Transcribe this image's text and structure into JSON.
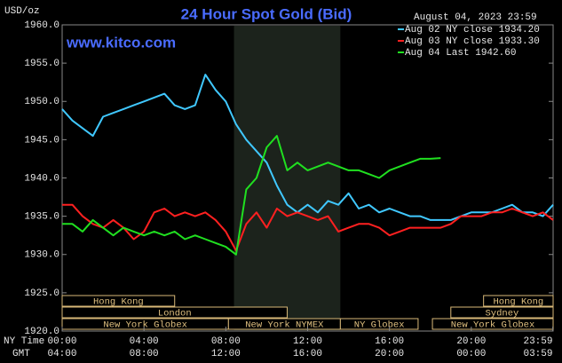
{
  "chart_data": {
    "type": "line",
    "title": "24 Hour Spot Gold (Bid)",
    "source": "www.kitco.com",
    "y_unit": "USD/oz",
    "timestamp": "August 04, 2023 23:59",
    "x_axis_labels": [
      "NY Time",
      "GMT"
    ],
    "x": [
      0,
      0.5,
      1,
      1.5,
      2,
      2.5,
      3,
      3.5,
      4,
      4.5,
      5,
      5.5,
      6,
      6.5,
      7,
      7.5,
      8,
      8.5,
      9,
      9.5,
      10,
      10.5,
      11,
      11.5,
      12,
      12.5,
      13,
      13.5,
      14,
      14.5,
      15,
      15.5,
      16,
      16.5,
      17,
      17.5,
      18,
      18.5,
      19,
      19.5,
      20,
      20.5,
      21,
      21.5,
      22,
      22.5,
      23,
      23.5,
      24
    ],
    "xlim": [
      0,
      24
    ],
    "xticks": [
      {
        "value": 0,
        "label": "00:00"
      },
      {
        "value": 4,
        "label": "04:00"
      },
      {
        "value": 8,
        "label": "08:00"
      },
      {
        "value": 12,
        "label": "12:00"
      },
      {
        "value": 16,
        "label": "16:00"
      },
      {
        "value": 20,
        "label": "20:00"
      },
      {
        "value": 23.98,
        "label": "23:59"
      }
    ],
    "gmt_ticks": [
      "04:00",
      "08:00",
      "12:00",
      "16:00",
      "20:00",
      "00:00",
      "03:59"
    ],
    "ylim": [
      1920,
      1960
    ],
    "yticks": [
      {
        "value": 1920,
        "label": "1920.0"
      },
      {
        "value": 1925,
        "label": "1925.0"
      },
      {
        "value": 1930,
        "label": "1930.0"
      },
      {
        "value": 1935,
        "label": "1935.0"
      },
      {
        "value": 1940,
        "label": "1940.0"
      },
      {
        "value": 1945,
        "label": "1945.0"
      },
      {
        "value": 1950,
        "label": "1950.0"
      },
      {
        "value": 1955,
        "label": "1955.0"
      },
      {
        "value": 1960,
        "label": "1960.0"
      }
    ],
    "highlight_x": [
      8.4,
      13.6
    ],
    "sessions": [
      {
        "name": "Hong Kong",
        "start": 0,
        "end": 5.5
      },
      {
        "name": "London",
        "start": 0,
        "end": 11
      },
      {
        "name": "New York Globex",
        "start": 0,
        "end": 8.13
      },
      {
        "name": "New York NYMEX",
        "start": 8.13,
        "end": 13.6
      },
      {
        "name": "NY Globex",
        "start": 13.6,
        "end": 17.4
      },
      {
        "name": "Hong Kong",
        "start": 20.6,
        "end": 24
      },
      {
        "name": "Sydney",
        "start": 19,
        "end": 24
      },
      {
        "name": "New York Globex",
        "start": 18.1,
        "end": 24
      }
    ],
    "series": [
      {
        "name": "Aug 02 NY close 1934.20",
        "color": "#40c8ff",
        "values": [
          1949,
          1947.5,
          1946.5,
          1945.5,
          1948,
          1948.5,
          1949,
          1949.5,
          1950,
          1950.5,
          1951,
          1949.5,
          1949,
          1949.5,
          1953.5,
          1951.5,
          1950,
          1947,
          1945,
          1943.5,
          1942,
          1939,
          1936.5,
          1935.5,
          1936.5,
          1935.5,
          1937,
          1936.5,
          1938,
          1936,
          1936.5,
          1935.5,
          1936,
          1935.5,
          1935,
          1935,
          1934.5,
          1934.5,
          1934.5,
          1935,
          1935.5,
          1935.5,
          1935.5,
          1936,
          1936.5,
          1935.5,
          1935.5,
          1935,
          1936.5
        ]
      },
      {
        "name": "Aug 03 NY close 1933.30",
        "color": "#ff2020",
        "values": [
          1936.5,
          1936.5,
          1935,
          1934,
          1933.5,
          1934.5,
          1933.5,
          1932,
          1933,
          1935.5,
          1936,
          1935,
          1935.5,
          1935,
          1935.5,
          1934.5,
          1933,
          1930.5,
          1934,
          1935.5,
          1933.5,
          1936,
          1935,
          1935.5,
          1935,
          1934.5,
          1935,
          1933,
          1933.5,
          1934,
          1934,
          1933.5,
          1932.5,
          1933,
          1933.5,
          1933.5,
          1933.5,
          1933.5,
          1934,
          1935,
          1935,
          1935,
          1935.5,
          1935.5,
          1936,
          1935.5,
          1935,
          1935.5,
          1934.5
        ]
      },
      {
        "name": "Aug 04 Last 1942.60",
        "color": "#20e020",
        "values": [
          1934,
          1934,
          1933,
          1934.5,
          1933.5,
          1932.5,
          1933.5,
          1933,
          1932.5,
          1933,
          1932.5,
          1933,
          1932,
          1932.5,
          1932,
          1931.5,
          1931,
          1930,
          1938.5,
          1940,
          1944,
          1945.5,
          1941,
          1942,
          1941,
          1941.5,
          1942,
          1941.5,
          1941,
          1941,
          1940.5,
          1940,
          1941,
          1941.5,
          1942,
          1942.5,
          1942.5,
          1942.6,
          null,
          null,
          null,
          null,
          null,
          null,
          null,
          null,
          null,
          null,
          null
        ]
      }
    ]
  }
}
